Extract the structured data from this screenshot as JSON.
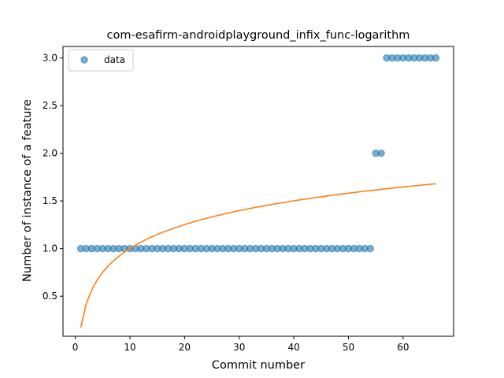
{
  "chart_data": {
    "type": "scatter",
    "title": "com-esafirm-androidplayground_infix_func-logarithm",
    "xlabel": "Commit number",
    "ylabel": "Number of instance of a feature",
    "xlim": [
      -2.25,
      69.25
    ],
    "ylim": [
      0.08,
      3.12
    ],
    "xticks": [
      0,
      10,
      20,
      30,
      40,
      50,
      60
    ],
    "yticks": [
      0.5,
      1.0,
      1.5,
      2.0,
      2.5,
      3.0
    ],
    "ytick_labels": [
      "0.5",
      "1.0",
      "1.5",
      "2.0",
      "2.5",
      "3.0"
    ],
    "legend": {
      "position": "top-left",
      "entries": [
        "data"
      ]
    },
    "grid": false,
    "colors": {
      "data": "#1f77b4",
      "fit": "#ff7f0e"
    },
    "series": [
      {
        "name": "data",
        "kind": "scatter",
        "x": [
          1,
          2,
          3,
          4,
          5,
          6,
          7,
          8,
          9,
          10,
          11,
          12,
          13,
          14,
          15,
          16,
          17,
          18,
          19,
          20,
          21,
          22,
          23,
          24,
          25,
          26,
          27,
          28,
          29,
          30,
          31,
          32,
          33,
          34,
          35,
          36,
          37,
          38,
          39,
          40,
          41,
          42,
          43,
          44,
          45,
          46,
          47,
          48,
          49,
          50,
          51,
          52,
          53,
          54,
          55,
          56,
          57,
          58,
          59,
          60,
          61,
          62,
          63,
          64,
          65,
          66
        ],
        "y": [
          1,
          1,
          1,
          1,
          1,
          1,
          1,
          1,
          1,
          1,
          1,
          1,
          1,
          1,
          1,
          1,
          1,
          1,
          1,
          1,
          1,
          1,
          1,
          1,
          1,
          1,
          1,
          1,
          1,
          1,
          1,
          1,
          1,
          1,
          1,
          1,
          1,
          1,
          1,
          1,
          1,
          1,
          1,
          1,
          1,
          1,
          1,
          1,
          1,
          1,
          1,
          1,
          1,
          1,
          2,
          2,
          3,
          3,
          3,
          3,
          3,
          3,
          3,
          3,
          3,
          3
        ]
      },
      {
        "kind": "line",
        "x": [
          1,
          2,
          3,
          4,
          5,
          6,
          7,
          8,
          9,
          10,
          11,
          12,
          13,
          14,
          15,
          16,
          17,
          18,
          19,
          20,
          21,
          22,
          23,
          24,
          25,
          26,
          27,
          28,
          29,
          30,
          31,
          32,
          33,
          34,
          35,
          36,
          37,
          38,
          39,
          40,
          41,
          42,
          43,
          44,
          45,
          46,
          47,
          48,
          49,
          50,
          51,
          52,
          53,
          54,
          55,
          56,
          57,
          58,
          59,
          60,
          61,
          62,
          63,
          64,
          65,
          66
        ],
        "y": [
          0.17,
          0.42,
          0.5664,
          0.6702,
          0.7508,
          0.8166,
          0.8722,
          0.9204,
          0.9629,
          1.0008,
          1.0352,
          1.0666,
          1.0955,
          1.1223,
          1.1473,
          1.1706,
          1.1926,
          1.2132,
          1.2328,
          1.2513,
          1.2689,
          1.2857,
          1.3018,
          1.3171,
          1.3318,
          1.3459,
          1.3595,
          1.3726,
          1.3852,
          1.3974,
          1.4091,
          1.4206,
          1.4316,
          1.4423,
          1.4527,
          1.4628,
          1.4727,
          1.4822,
          1.4916,
          1.5007,
          1.5095,
          1.5182,
          1.5267,
          1.5349,
          1.543,
          1.5509,
          1.5586,
          1.5661,
          1.5735,
          1.5808,
          1.5879,
          1.5949,
          1.6017,
          1.6084,
          1.6149,
          1.6214,
          1.6277,
          1.6339,
          1.64,
          1.646,
          1.652,
          1.6578,
          1.6635,
          1.6691,
          1.6746,
          1.6801
        ]
      }
    ]
  }
}
